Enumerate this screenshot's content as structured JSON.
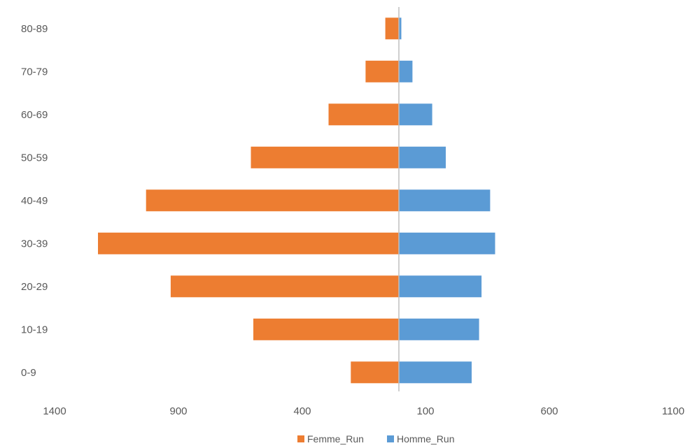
{
  "chart_data": {
    "type": "bar",
    "orientation": "horizontal",
    "layout": "population-pyramid",
    "categories": [
      "0-9",
      "10-19",
      "20-29",
      "30-39",
      "40-49",
      "50-59",
      "60-69",
      "70-79",
      "80-89"
    ],
    "series": [
      {
        "name": "Femme_Run",
        "color": "#ED7D31",
        "values": [
          195,
          590,
          925,
          1220,
          1025,
          600,
          285,
          135,
          55
        ]
      },
      {
        "name": "Homme_Run",
        "color": "#5B9BD5",
        "values": [
          295,
          325,
          335,
          390,
          370,
          190,
          135,
          55,
          10
        ]
      }
    ],
    "x_tick_labels": [
      "1400",
      "900",
      "400",
      "100",
      "600",
      "1100"
    ],
    "axis_line_color": "#BFBFBF",
    "legend": {
      "position": "bottom"
    },
    "grid": false
  }
}
